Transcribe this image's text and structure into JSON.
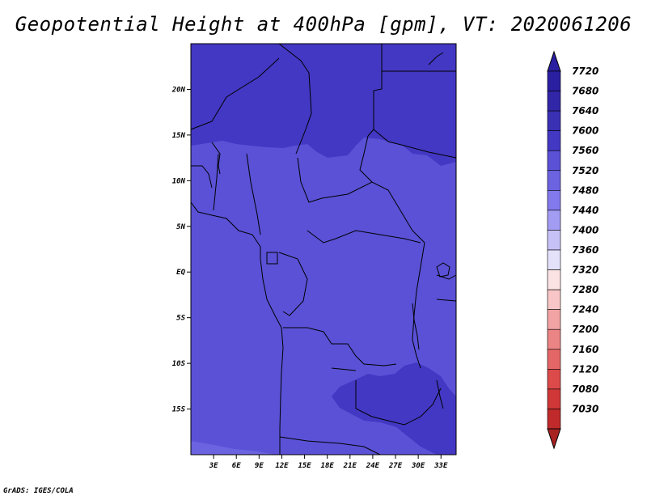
{
  "title": "Geopotential Height at 400hPa [gpm], VT: 2020061206",
  "footer": "GrADS: IGES/COLA",
  "map": {
    "lon_range": [
      0,
      35
    ],
    "lat_range": [
      -20,
      25
    ],
    "y_ticks": [
      {
        "lat": 20,
        "label": "20N"
      },
      {
        "lat": 15,
        "label": "15N"
      },
      {
        "lat": 10,
        "label": "10N"
      },
      {
        "lat": 5,
        "label": "5N"
      },
      {
        "lat": 0,
        "label": "EQ"
      },
      {
        "lat": -5,
        "label": "5S"
      },
      {
        "lat": -10,
        "label": "10S"
      },
      {
        "lat": -15,
        "label": "15S"
      }
    ],
    "x_ticks": [
      {
        "lon": 3,
        "label": "3E"
      },
      {
        "lon": 6,
        "label": "6E"
      },
      {
        "lon": 9,
        "label": "9E"
      },
      {
        "lon": 12,
        "label": "12E"
      },
      {
        "lon": 15,
        "label": "15E"
      },
      {
        "lon": 18,
        "label": "18E"
      },
      {
        "lon": 21,
        "label": "21E"
      },
      {
        "lon": 24,
        "label": "24E"
      },
      {
        "lon": 27,
        "label": "27E"
      },
      {
        "lon": 30,
        "label": "30E"
      },
      {
        "lon": 33,
        "label": "33E"
      }
    ]
  },
  "colorbar": {
    "levels": [
      {
        "label": "7720",
        "color": "#2a1fa0"
      },
      {
        "label": "7680",
        "color": "#3226a8"
      },
      {
        "label": "7640",
        "color": "#3a30b4"
      },
      {
        "label": "7600",
        "color": "#4338c3"
      },
      {
        "label": "7560",
        "color": "#5a51d6"
      },
      {
        "label": "7520",
        "color": "#6b63e0"
      },
      {
        "label": "7480",
        "color": "#8179ec"
      },
      {
        "label": "7440",
        "color": "#a29cf3"
      },
      {
        "label": "7400",
        "color": "#c6c2f7"
      },
      {
        "label": "7360",
        "color": "#e4e2fb"
      },
      {
        "label": "7320",
        "color": "#fbe3e3"
      },
      {
        "label": "7280",
        "color": "#f8c6c6"
      },
      {
        "label": "7240",
        "color": "#f2a3a3"
      },
      {
        "label": "7200",
        "color": "#eb8484"
      },
      {
        "label": "7160",
        "color": "#e46666"
      },
      {
        "label": "7120",
        "color": "#dc4a4a"
      },
      {
        "label": "7080",
        "color": "#d03737"
      },
      {
        "label": "7030",
        "color": "#c02a2a"
      },
      {
        "label": "",
        "color": "#a82222"
      }
    ],
    "top_arrow_color": "#2a1fa0",
    "bottom_arrow_color": "#a82222"
  },
  "field_colors": {
    "north_high": "#4338c3",
    "main": "#5a51d6",
    "south_low": "#6b63e0",
    "southeast_high": "#4338c3"
  }
}
